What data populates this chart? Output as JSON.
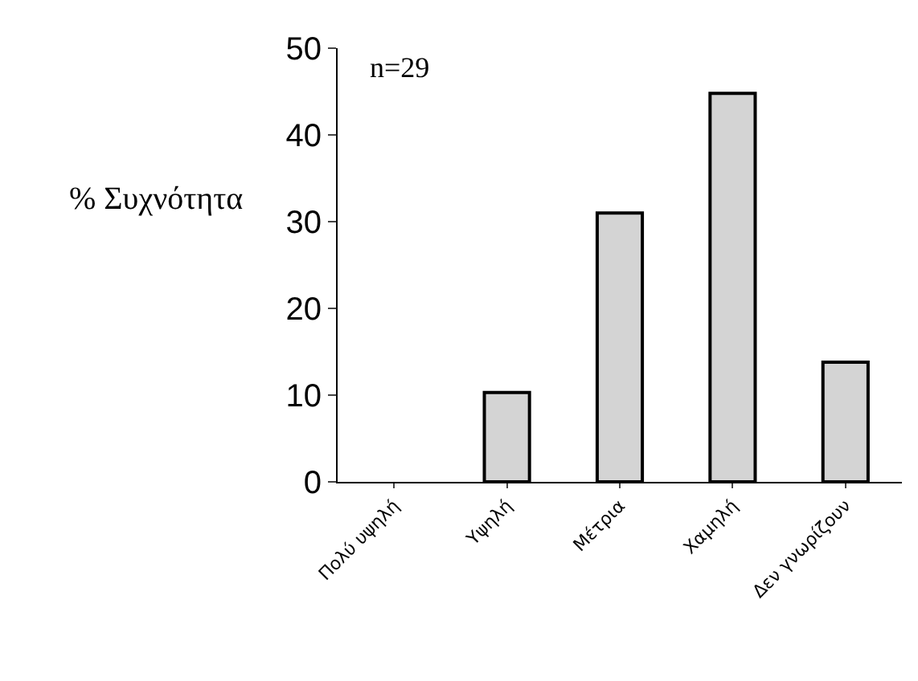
{
  "chart_data": {
    "type": "bar",
    "ylabel": "% Συχνότητα",
    "annotations": [
      "n=29"
    ],
    "categories": [
      "Πολύ υψηλή",
      "Υψηλή",
      "Μέτρια",
      "Χαμηλή",
      "Δεν γνωρίζουν"
    ],
    "values": [
      0,
      10.3,
      31,
      44.8,
      13.8
    ],
    "color": "#d4d4d4",
    "ylim": [
      0,
      50
    ],
    "yticks": [
      0,
      10,
      20,
      30,
      40,
      50
    ],
    "grid": false
  }
}
